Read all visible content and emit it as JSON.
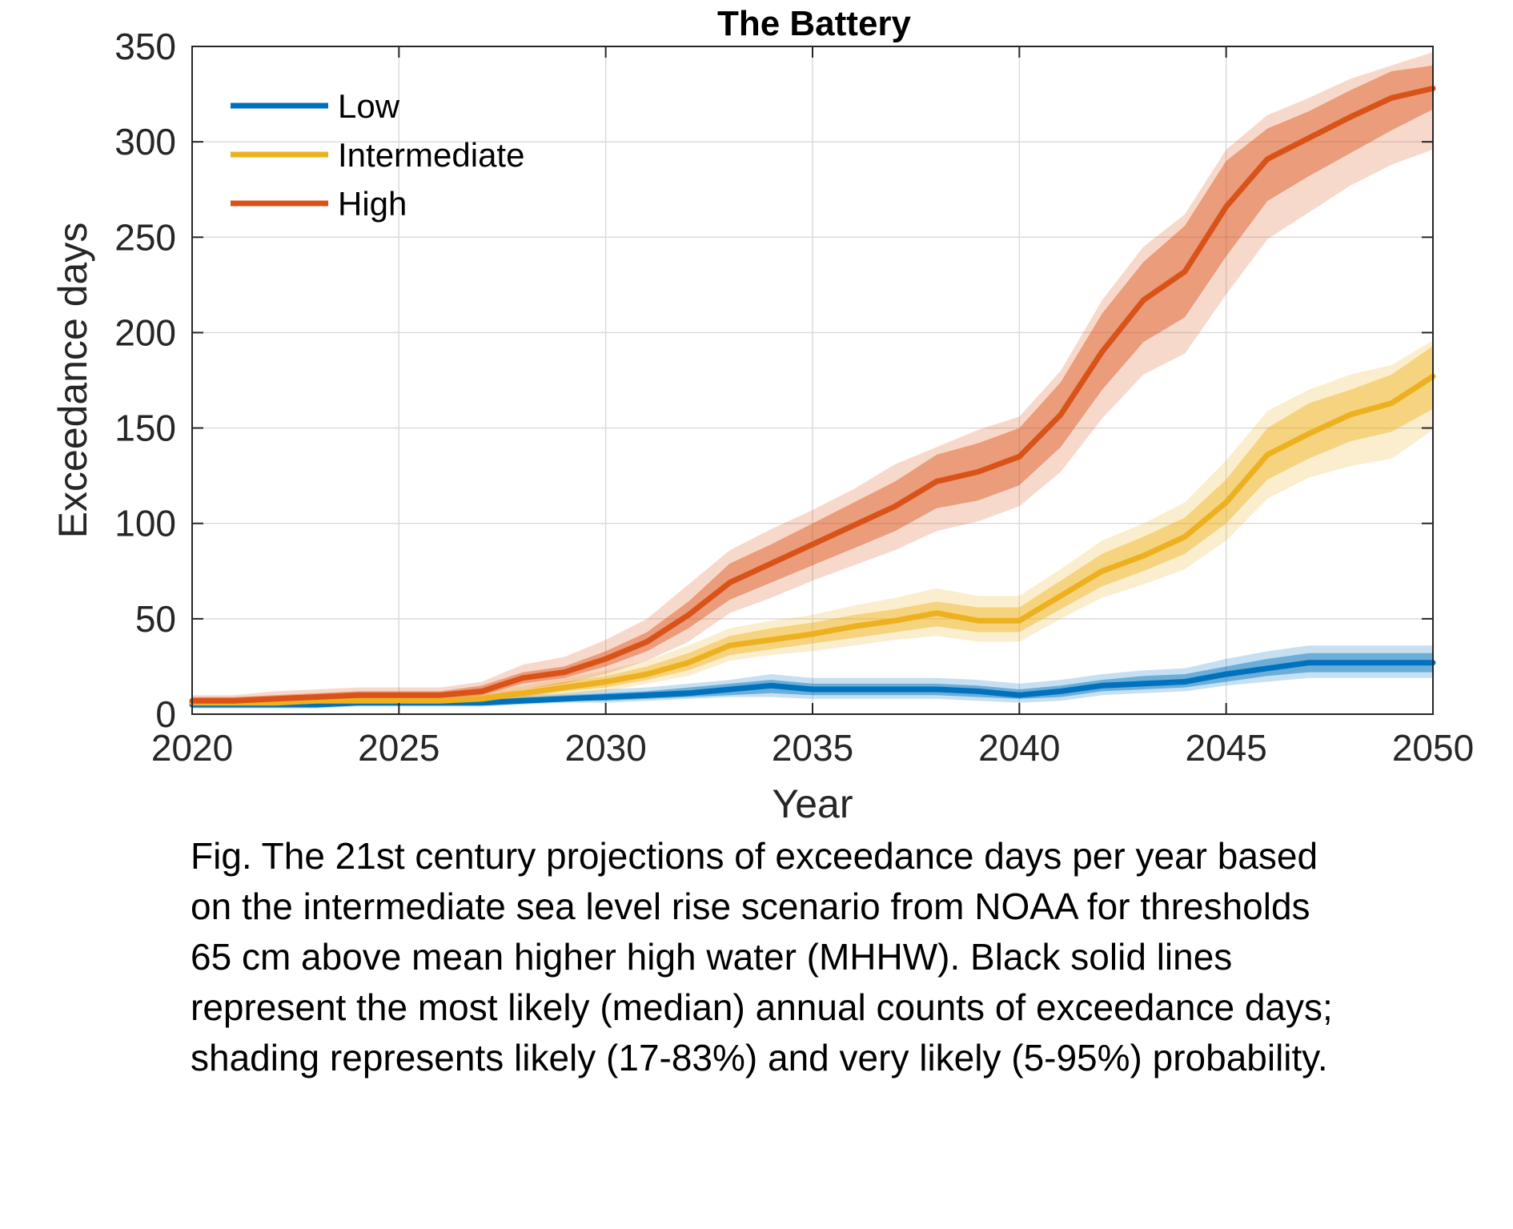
{
  "chart_data": {
    "type": "line",
    "title": "The Battery",
    "xlabel": "Year",
    "ylabel": "Exceedance days",
    "xlim": [
      2020,
      2050
    ],
    "ylim": [
      0,
      350
    ],
    "xticks": [
      2020,
      2025,
      2030,
      2035,
      2040,
      2045,
      2050
    ],
    "yticks": [
      0,
      50,
      100,
      150,
      200,
      250,
      300,
      350
    ],
    "grid": true,
    "legend_position": "top-left",
    "x": [
      2020,
      2021,
      2022,
      2023,
      2024,
      2025,
      2026,
      2027,
      2028,
      2029,
      2030,
      2031,
      2032,
      2033,
      2034,
      2035,
      2036,
      2037,
      2038,
      2039,
      2040,
      2041,
      2042,
      2043,
      2044,
      2045,
      2046,
      2047,
      2048,
      2049,
      2050
    ],
    "series": [
      {
        "name": "Low",
        "color": "#0072BD",
        "values": [
          5,
          5,
          5,
          5,
          6,
          6,
          6,
          6,
          7,
          8,
          9,
          10,
          11,
          13,
          15,
          13,
          13,
          13,
          13,
          12,
          10,
          12,
          15,
          16,
          17,
          21,
          24,
          27,
          27,
          27,
          27
        ],
        "likely": [
          [
            4,
            6
          ],
          [
            4,
            6
          ],
          [
            4,
            6
          ],
          [
            4,
            6
          ],
          [
            5,
            7
          ],
          [
            5,
            7
          ],
          [
            5,
            7
          ],
          [
            5,
            7
          ],
          [
            6,
            9
          ],
          [
            7,
            10
          ],
          [
            7,
            11
          ],
          [
            8,
            12
          ],
          [
            9,
            14
          ],
          [
            10,
            16
          ],
          [
            11,
            18
          ],
          [
            10,
            16
          ],
          [
            10,
            16
          ],
          [
            10,
            16
          ],
          [
            10,
            16
          ],
          [
            9,
            15
          ],
          [
            8,
            13
          ],
          [
            9,
            15
          ],
          [
            12,
            18
          ],
          [
            13,
            20
          ],
          [
            14,
            21
          ],
          [
            17,
            25
          ],
          [
            20,
            29
          ],
          [
            22,
            32
          ],
          [
            22,
            32
          ],
          [
            22,
            32
          ],
          [
            22,
            32
          ]
        ],
        "very_likely": [
          [
            3,
            7
          ],
          [
            3,
            7
          ],
          [
            3,
            7
          ],
          [
            3,
            8
          ],
          [
            4,
            8
          ],
          [
            4,
            8
          ],
          [
            4,
            8
          ],
          [
            4,
            9
          ],
          [
            5,
            10
          ],
          [
            6,
            11
          ],
          [
            6,
            13
          ],
          [
            7,
            14
          ],
          [
            8,
            16
          ],
          [
            9,
            18
          ],
          [
            9,
            21
          ],
          [
            8,
            19
          ],
          [
            8,
            19
          ],
          [
            8,
            19
          ],
          [
            8,
            19
          ],
          [
            7,
            18
          ],
          [
            6,
            16
          ],
          [
            7,
            18
          ],
          [
            10,
            21
          ],
          [
            11,
            23
          ],
          [
            12,
            24
          ],
          [
            15,
            29
          ],
          [
            17,
            33
          ],
          [
            19,
            36
          ],
          [
            19,
            36
          ],
          [
            19,
            36
          ],
          [
            19,
            36
          ]
        ]
      },
      {
        "name": "Intermediate",
        "color": "#EDB120",
        "values": [
          6,
          6,
          6,
          7,
          7,
          7,
          7,
          8,
          11,
          14,
          17,
          21,
          27,
          36,
          39,
          42,
          46,
          49,
          53,
          49,
          49,
          62,
          75,
          83,
          93,
          111,
          136,
          147,
          157,
          163,
          177
        ],
        "likely": [
          [
            5,
            7
          ],
          [
            5,
            7
          ],
          [
            5,
            7
          ],
          [
            6,
            8
          ],
          [
            6,
            8
          ],
          [
            6,
            8
          ],
          [
            6,
            8
          ],
          [
            7,
            10
          ],
          [
            9,
            13
          ],
          [
            12,
            17
          ],
          [
            14,
            20
          ],
          [
            18,
            25
          ],
          [
            23,
            32
          ],
          [
            31,
            41
          ],
          [
            34,
            45
          ],
          [
            37,
            48
          ],
          [
            40,
            52
          ],
          [
            43,
            55
          ],
          [
            46,
            59
          ],
          [
            43,
            56
          ],
          [
            43,
            56
          ],
          [
            55,
            70
          ],
          [
            67,
            84
          ],
          [
            75,
            93
          ],
          [
            84,
            103
          ],
          [
            100,
            123
          ],
          [
            123,
            150
          ],
          [
            134,
            163
          ],
          [
            143,
            170
          ],
          [
            148,
            178
          ],
          [
            160,
            193
          ]
        ],
        "very_likely": [
          [
            4,
            8
          ],
          [
            4,
            8
          ],
          [
            4,
            8
          ],
          [
            5,
            9
          ],
          [
            5,
            9
          ],
          [
            5,
            9
          ],
          [
            5,
            9
          ],
          [
            6,
            11
          ],
          [
            8,
            15
          ],
          [
            10,
            19
          ],
          [
            12,
            23
          ],
          [
            16,
            28
          ],
          [
            20,
            36
          ],
          [
            28,
            45
          ],
          [
            31,
            49
          ],
          [
            33,
            52
          ],
          [
            36,
            57
          ],
          [
            39,
            61
          ],
          [
            41,
            66
          ],
          [
            38,
            62
          ],
          [
            38,
            62
          ],
          [
            50,
            76
          ],
          [
            61,
            91
          ],
          [
            68,
            100
          ],
          [
            76,
            111
          ],
          [
            91,
            133
          ],
          [
            113,
            159
          ],
          [
            124,
            170
          ],
          [
            130,
            178
          ],
          [
            134,
            183
          ],
          [
            149,
            196
          ]
        ]
      },
      {
        "name": "High",
        "color": "#D95319",
        "values": [
          7,
          7,
          8,
          9,
          10,
          10,
          10,
          12,
          19,
          22,
          29,
          38,
          52,
          69,
          79,
          89,
          99,
          109,
          122,
          127,
          135,
          157,
          190,
          217,
          232,
          266,
          291,
          302,
          313,
          323,
          328
        ],
        "likely": [
          [
            6,
            9
          ],
          [
            6,
            9
          ],
          [
            7,
            10
          ],
          [
            8,
            11
          ],
          [
            8,
            12
          ],
          [
            8,
            12
          ],
          [
            8,
            12
          ],
          [
            10,
            15
          ],
          [
            16,
            22
          ],
          [
            19,
            25
          ],
          [
            25,
            33
          ],
          [
            33,
            43
          ],
          [
            45,
            59
          ],
          [
            60,
            79
          ],
          [
            69,
            89
          ],
          [
            78,
            100
          ],
          [
            87,
            111
          ],
          [
            96,
            122
          ],
          [
            108,
            136
          ],
          [
            112,
            142
          ],
          [
            120,
            150
          ],
          [
            140,
            174
          ],
          [
            170,
            210
          ],
          [
            195,
            237
          ],
          [
            208,
            256
          ],
          [
            240,
            290
          ],
          [
            269,
            307
          ],
          [
            282,
            316
          ],
          [
            294,
            327
          ],
          [
            306,
            337
          ],
          [
            317,
            340
          ]
        ],
        "very_likely": [
          [
            5,
            10
          ],
          [
            5,
            10
          ],
          [
            6,
            12
          ],
          [
            6,
            13
          ],
          [
            7,
            14
          ],
          [
            7,
            14
          ],
          [
            7,
            14
          ],
          [
            8,
            17
          ],
          [
            13,
            26
          ],
          [
            16,
            30
          ],
          [
            21,
            39
          ],
          [
            28,
            50
          ],
          [
            38,
            68
          ],
          [
            53,
            86
          ],
          [
            61,
            97
          ],
          [
            70,
            107
          ],
          [
            78,
            118
          ],
          [
            86,
            131
          ],
          [
            96,
            140
          ],
          [
            101,
            149
          ],
          [
            109,
            156
          ],
          [
            127,
            180
          ],
          [
            155,
            217
          ],
          [
            178,
            245
          ],
          [
            189,
            262
          ],
          [
            220,
            296
          ],
          [
            249,
            314
          ],
          [
            263,
            323
          ],
          [
            277,
            333
          ],
          [
            288,
            340
          ],
          [
            296,
            347
          ]
        ]
      }
    ]
  },
  "caption": {
    "lines": [
      "Fig. The 21st century projections of exceedance days per year based",
      "on the intermediate sea level rise scenario from NOAA for thresholds",
      "65 cm above mean higher high water (MHHW). Black solid lines",
      "represent the most likely (median) annual counts of exceedance days;",
      "shading represents likely (17‑83%) and very likely (5‑95%) probability."
    ]
  }
}
